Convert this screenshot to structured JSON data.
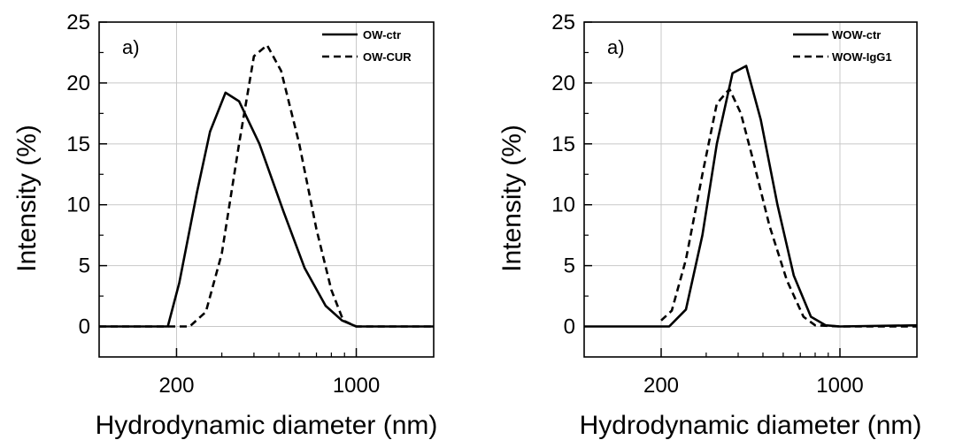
{
  "chart_data": [
    {
      "type": "line",
      "panel_label": "a)",
      "xlabel": "Hydrodynamic diameter (nm)",
      "ylabel": "Intensity (%)",
      "x_scale": "log",
      "xlim": [
        100,
        2000
      ],
      "ylim": [
        -2.5,
        25
      ],
      "x_ticks": [
        200,
        1000
      ],
      "y_ticks": [
        0,
        5,
        10,
        15,
        20,
        25
      ],
      "grid": true,
      "legend_position": "top-right",
      "series": [
        {
          "name": "OW-ctr",
          "style": "solid",
          "color": "#000000",
          "points": [
            [
              100,
              0
            ],
            [
              140,
              0
            ],
            [
              185,
              0
            ],
            [
              205,
              3.6
            ],
            [
              240,
              11
            ],
            [
              270,
              16
            ],
            [
              310,
              19.2
            ],
            [
              350,
              18.5
            ],
            [
              420,
              15
            ],
            [
              520,
              9.5
            ],
            [
              630,
              4.8
            ],
            [
              760,
              1.7
            ],
            [
              880,
              0.5
            ],
            [
              1000,
              0
            ],
            [
              2000,
              0
            ]
          ]
        },
        {
          "name": "OW-CUR",
          "style": "dashed",
          "color": "#000000",
          "points": [
            [
              100,
              0
            ],
            [
              200,
              0
            ],
            [
              225,
              0
            ],
            [
              260,
              1.2
            ],
            [
              300,
              6
            ],
            [
              350,
              15
            ],
            [
              400,
              22.2
            ],
            [
              450,
              23.1
            ],
            [
              510,
              21
            ],
            [
              600,
              15
            ],
            [
              700,
              8
            ],
            [
              800,
              3
            ],
            [
              890,
              0.5
            ],
            [
              1000,
              0
            ],
            [
              2000,
              0
            ]
          ]
        }
      ]
    },
    {
      "type": "line",
      "panel_label": "a)",
      "xlabel": "Hydrodynamic diameter (nm)",
      "ylabel": "Intensity (%)",
      "x_scale": "log",
      "xlim": [
        100,
        2000
      ],
      "ylim": [
        -2.5,
        25
      ],
      "x_ticks": [
        200,
        1000
      ],
      "y_ticks": [
        0,
        5,
        10,
        15,
        20,
        25
      ],
      "grid": true,
      "legend_position": "top-right",
      "series": [
        {
          "name": "WOW-ctr",
          "style": "solid",
          "color": "#000000",
          "points": [
            [
              100,
              0
            ],
            [
              200,
              0
            ],
            [
              215,
              0
            ],
            [
              250,
              1.4
            ],
            [
              290,
              7.5
            ],
            [
              330,
              15
            ],
            [
              380,
              20.8
            ],
            [
              430,
              21.4
            ],
            [
              490,
              17
            ],
            [
              570,
              10
            ],
            [
              660,
              4.2
            ],
            [
              770,
              0.8
            ],
            [
              880,
              0.1
            ],
            [
              1000,
              0
            ],
            [
              2000,
              0.1
            ]
          ]
        },
        {
          "name": "WOW-IgG1",
          "style": "dashed",
          "color": "#000000",
          "points": [
            [
              200,
              0.5
            ],
            [
              220,
              1.3
            ],
            [
              250,
              5.5
            ],
            [
              290,
              12.5
            ],
            [
              330,
              18.3
            ],
            [
              370,
              19.5
            ],
            [
              410,
              17.5
            ],
            [
              460,
              13.5
            ],
            [
              530,
              8.3
            ],
            [
              620,
              3.8
            ],
            [
              720,
              0.8
            ],
            [
              800,
              0.1
            ],
            [
              1000,
              0
            ],
            [
              2000,
              0
            ]
          ]
        }
      ]
    }
  ]
}
